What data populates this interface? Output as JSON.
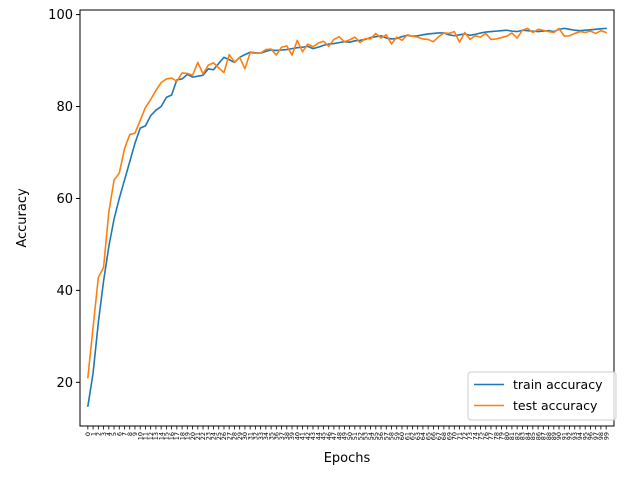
{
  "chart_data": {
    "type": "line",
    "xlabel": "Epochs",
    "ylabel": "Accuracy",
    "xlim": [
      -1.5,
      100.5
    ],
    "ylim": [
      10.5,
      101
    ],
    "y_ticks": [
      20,
      40,
      60,
      80,
      100
    ],
    "x_ticks": [
      0,
      1,
      2,
      3,
      4,
      5,
      6,
      7,
      8,
      9,
      10,
      11,
      12,
      13,
      14,
      15,
      16,
      17,
      18,
      19,
      20,
      21,
      22,
      23,
      24,
      25,
      26,
      27,
      28,
      29,
      30,
      31,
      32,
      33,
      34,
      35,
      36,
      37,
      38,
      39,
      40,
      41,
      42,
      43,
      44,
      45,
      46,
      47,
      48,
      49,
      50,
      51,
      52,
      53,
      54,
      55,
      56,
      57,
      58,
      59,
      60,
      61,
      62,
      63,
      64,
      65,
      66,
      67,
      68,
      69,
      70,
      71,
      72,
      73,
      74,
      75,
      76,
      77,
      78,
      79,
      80,
      81,
      82,
      83,
      84,
      85,
      86,
      87,
      88,
      89,
      90,
      91,
      92,
      93,
      94,
      95,
      96,
      97,
      98,
      99
    ],
    "legend_position": "bottom-right",
    "grid": false,
    "x": [
      0,
      1,
      2,
      3,
      4,
      5,
      6,
      7,
      8,
      9,
      10,
      11,
      12,
      13,
      14,
      15,
      16,
      17,
      18,
      19,
      20,
      21,
      22,
      23,
      24,
      25,
      26,
      27,
      28,
      29,
      30,
      31,
      32,
      33,
      34,
      35,
      36,
      37,
      38,
      39,
      40,
      41,
      42,
      43,
      44,
      45,
      46,
      47,
      48,
      49,
      50,
      51,
      52,
      53,
      54,
      55,
      56,
      57,
      58,
      59,
      60,
      61,
      62,
      63,
      64,
      65,
      66,
      67,
      68,
      69,
      70,
      71,
      72,
      73,
      74,
      75,
      76,
      77,
      78,
      79,
      80,
      81,
      82,
      83,
      84,
      85,
      86,
      87,
      88,
      89,
      90,
      91,
      92,
      93,
      94,
      95,
      96,
      97,
      98,
      99
    ],
    "series": [
      {
        "name": "train accuracy",
        "color": "#1f77b4",
        "values": [
          14.8,
          22.0,
          33.0,
          42.0,
          49.5,
          55.5,
          60.0,
          64.0,
          68.0,
          72.0,
          75.3,
          75.8,
          78.0,
          79.2,
          80.0,
          82.0,
          82.5,
          85.8,
          86.0,
          87.0,
          86.4,
          86.6,
          86.8,
          88.2,
          88.0,
          89.4,
          90.7,
          90.2,
          89.6,
          90.7,
          91.3,
          91.8,
          91.7,
          91.6,
          92.0,
          92.3,
          92.2,
          92.3,
          92.4,
          92.6,
          92.8,
          92.9,
          93.1,
          92.6,
          92.9,
          93.3,
          93.6,
          93.7,
          93.9,
          94.1,
          94.0,
          94.3,
          94.4,
          94.6,
          95.0,
          95.2,
          95.4,
          94.9,
          94.7,
          94.8,
          95.2,
          95.5,
          95.3,
          95.4,
          95.6,
          95.8,
          95.9,
          96.0,
          96.0,
          95.6,
          95.4,
          95.6,
          95.8,
          95.5,
          95.7,
          96.0,
          96.2,
          96.3,
          96.4,
          96.5,
          96.6,
          96.4,
          96.3,
          96.6,
          96.5,
          96.4,
          96.3,
          96.4,
          96.5,
          96.3,
          96.8,
          97.0,
          96.8,
          96.6,
          96.5,
          96.6,
          96.7,
          96.8,
          96.9,
          97.0
        ]
      },
      {
        "name": "test accuracy",
        "color": "#ff7f0e",
        "values": [
          21.0,
          32.0,
          42.8,
          45.0,
          57.0,
          64.0,
          65.5,
          70.8,
          73.9,
          74.2,
          77.0,
          79.8,
          81.5,
          83.5,
          85.2,
          86.0,
          86.2,
          85.5,
          87.3,
          87.2,
          86.8,
          89.6,
          87.1,
          89.0,
          89.5,
          88.4,
          87.4,
          91.3,
          89.7,
          90.7,
          88.2,
          91.7,
          91.6,
          91.6,
          92.4,
          92.5,
          91.2,
          92.9,
          93.2,
          91.2,
          94.4,
          91.9,
          93.6,
          93.0,
          93.8,
          94.2,
          93.1,
          94.6,
          95.2,
          94.1,
          94.5,
          95.1,
          93.9,
          94.8,
          94.7,
          95.9,
          94.9,
          95.6,
          93.6,
          95.1,
          94.4,
          95.6,
          95.3,
          95.1,
          94.7,
          94.6,
          94.1,
          95.2,
          96.0,
          95.9,
          96.3,
          94.0,
          96.1,
          94.6,
          95.4,
          95.1,
          95.9,
          94.6,
          94.7,
          95.0,
          95.3,
          96.0,
          94.9,
          96.6,
          97.0,
          96.1,
          96.8,
          96.6,
          96.3,
          96.1,
          97.0,
          95.3,
          95.4,
          95.9,
          96.3,
          96.1,
          96.4,
          95.9,
          96.5,
          96.1
        ]
      }
    ]
  }
}
